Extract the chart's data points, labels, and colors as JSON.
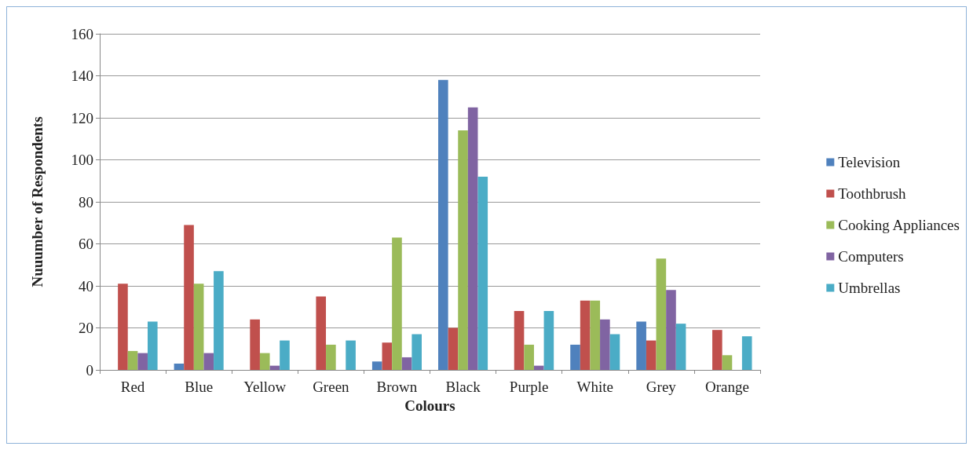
{
  "chart_data": {
    "type": "bar",
    "xlabel": "Colours",
    "ylabel": "Nuuumber of Respondents",
    "categories": [
      "Red",
      "Blue",
      "Yellow",
      "Green",
      "Brown",
      "Black",
      "Purple",
      "White",
      "Grey",
      "Orange"
    ],
    "series": [
      {
        "name": "Television",
        "color": "#4f81bd",
        "values": [
          0,
          3,
          0,
          0,
          4,
          138,
          0,
          12,
          23,
          0
        ]
      },
      {
        "name": "Toothbrush",
        "color": "#c0504d",
        "values": [
          41,
          69,
          24,
          35,
          13,
          20,
          28,
          33,
          14,
          19
        ]
      },
      {
        "name": "Cooking Appliances",
        "color": "#9bbb59",
        "values": [
          9,
          41,
          8,
          12,
          63,
          114,
          12,
          33,
          53,
          7
        ]
      },
      {
        "name": "Computers",
        "color": "#8064a2",
        "values": [
          8,
          8,
          2,
          0,
          6,
          125,
          2,
          24,
          38,
          0
        ]
      },
      {
        "name": "Umbrellas",
        "color": "#4bacc6",
        "values": [
          23,
          47,
          14,
          14,
          17,
          92,
          28,
          17,
          22,
          16
        ]
      }
    ],
    "ylim": [
      0,
      160
    ],
    "yticks": [
      0,
      20,
      40,
      60,
      80,
      100,
      120,
      140,
      160
    ],
    "grid": "y",
    "legend": "right"
  }
}
